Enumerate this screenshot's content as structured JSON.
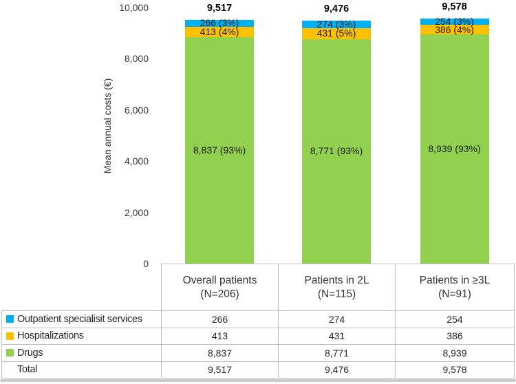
{
  "figure_name": "Mean annual costs per patient, stacked by cost category",
  "chart_data": {
    "type": "bar",
    "stacked": true,
    "title": "",
    "xlabel": "",
    "ylabel": "Mean annual costs (€)",
    "ylim": [
      0,
      10000
    ],
    "grid": false,
    "legend_position": "left-of-table-rows",
    "y_ticks": [
      {
        "value": 10000,
        "label": "10,000"
      },
      {
        "value": 8000,
        "label": "8,000"
      },
      {
        "value": 6000,
        "label": "6,000"
      },
      {
        "value": 4000,
        "label": "4,000"
      },
      {
        "value": 2000,
        "label": "2,000"
      },
      {
        "value": 0,
        "label": "0"
      }
    ],
    "categories": [
      "Overall patients (N=206)",
      "Patients in 2L (N=115)",
      "Patients in ≥3L (N=91)"
    ],
    "series": [
      {
        "name": "Outpatient specialisit services",
        "color": "#00B0F0",
        "values": [
          266,
          274,
          254
        ],
        "data_labels": [
          "266 (3%)",
          "274 (3%)",
          "254 (3%)"
        ]
      },
      {
        "name": "Hospitalizations",
        "color": "#FFC000",
        "values": [
          413,
          431,
          386
        ],
        "data_labels": [
          "413 (4%)",
          "431 (5%)",
          "386 (4%)"
        ]
      },
      {
        "name": "Drugs",
        "color": "#92D050",
        "values": [
          8837,
          8771,
          8939
        ],
        "data_labels": [
          "8,837 (93%)",
          "8,771 (93%)",
          "8,939 (93%)"
        ]
      }
    ],
    "totals": {
      "values": [
        9517,
        9476,
        9578
      ],
      "labels": [
        "9,517",
        "9,476",
        "9,578"
      ]
    }
  },
  "table": {
    "column_headers": [
      {
        "line1": "Overall patients",
        "line2": "(N=206)"
      },
      {
        "line1": "Patients in 2L",
        "line2": "(N=115)"
      },
      {
        "line1": "Patients in ≥3L",
        "line2": "(N=91)"
      }
    ],
    "rows": [
      {
        "label": "Outpatient specialisit services",
        "marker_color": "#00B0F0",
        "values": [
          "266",
          "274",
          "254"
        ]
      },
      {
        "label": "Hospitalizations",
        "marker_color": "#FFC000",
        "values": [
          "413",
          "431",
          "386"
        ]
      },
      {
        "label": "Drugs",
        "marker_color": "#92D050",
        "values": [
          "8,837",
          "8,771",
          "8,939"
        ]
      },
      {
        "label": "Total",
        "marker_color": null,
        "values": [
          "9,517",
          "9,476",
          "9,578"
        ]
      }
    ]
  },
  "colors": {
    "outpatient_blue": "#00B0F0",
    "hospitalizations_orange": "#FFC000",
    "drugs_green": "#92D050",
    "table_border": "#BFBFBF",
    "text": "#262626"
  }
}
